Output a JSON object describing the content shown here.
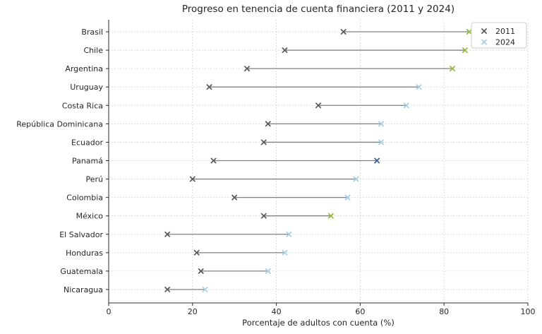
{
  "chart_data": {
    "type": "dumbbell",
    "title": "Progreso en tenencia de cuenta financiera (2011 y 2024)",
    "xlabel": "Porcentaje de adultos con cuenta (%)",
    "xlim": [
      0,
      100
    ],
    "xticks": [
      0,
      20,
      40,
      60,
      80,
      100
    ],
    "grid": true,
    "legend": {
      "position": "upper right",
      "entries": [
        {
          "label": "2011",
          "marker": "x",
          "color": "#5a5a5a"
        },
        {
          "label": "2024",
          "marker": "x",
          "color": "#a6cee3"
        }
      ]
    },
    "categories": [
      "Brasil",
      "Chile",
      "Argentina",
      "Uruguay",
      "Costa Rica",
      "República Dominicana",
      "Ecuador",
      "Panamá",
      "Perú",
      "Colombia",
      "México",
      "El Salvador",
      "Honduras",
      "Guatemala",
      "Nicaragua"
    ],
    "series": [
      {
        "name": "2011",
        "marker": "x",
        "color": "#5a5a5a",
        "values": [
          56,
          42,
          33,
          24,
          50,
          38,
          37,
          25,
          20,
          30,
          37,
          14,
          21,
          22,
          14
        ]
      },
      {
        "name": "2024",
        "marker": "x",
        "default_color": "#a6cee3",
        "values": [
          86,
          85,
          82,
          74,
          71,
          65,
          65,
          64,
          59,
          57,
          53,
          43,
          42,
          38,
          23
        ],
        "point_colors": [
          "#97b93f",
          "#97b93f",
          "#97b93f",
          "#a6cee3",
          "#a6cee3",
          "#a6cee3",
          "#a6cee3",
          "#38618c",
          "#a6cee3",
          "#a6cee3",
          "#97b93f",
          "#a6cee3",
          "#a6cee3",
          "#a6cee3",
          "#a6cee3"
        ]
      }
    ],
    "connector_color": "#808080",
    "grid_color": "#c9c9c9",
    "spine_color": "#2b2b2b",
    "text_color": "#262626"
  }
}
